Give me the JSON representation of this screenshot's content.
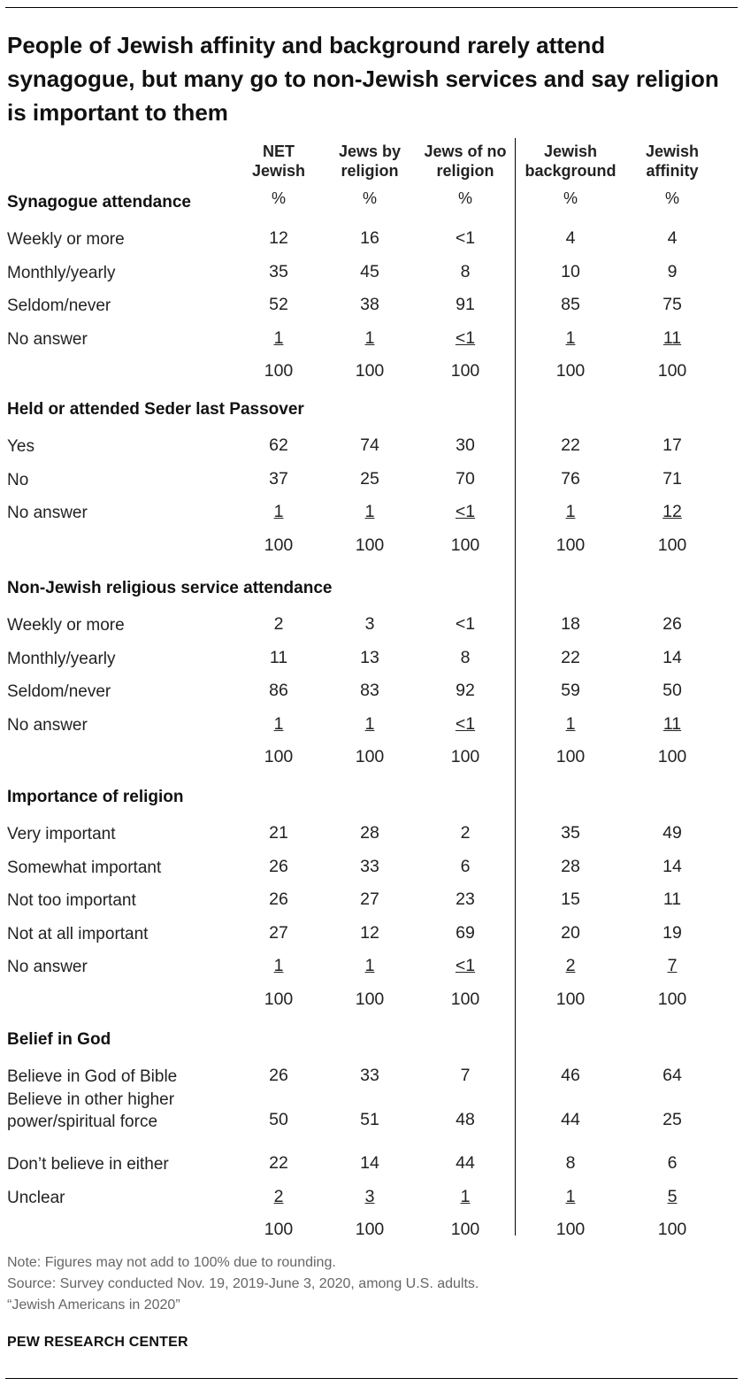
{
  "title": "People of Jewish affinity and background rarely attend synagogue, but many go to non-Jewish services and say religion is important to them",
  "chart_data": {
    "type": "table",
    "columns": [
      {
        "line1": "NET",
        "line2": "Jewish",
        "unit": "%"
      },
      {
        "line1": "Jews by",
        "line2": "religion",
        "unit": "%"
      },
      {
        "line1": "Jews of no",
        "line2": "religion",
        "unit": "%"
      },
      {
        "line1": "Jewish",
        "line2": "background",
        "unit": "%"
      },
      {
        "line1": "Jewish",
        "line2": "affinity",
        "unit": "%"
      }
    ],
    "sections": [
      {
        "header": "Synagogue attendance",
        "rows": [
          {
            "label": "Weekly or more",
            "values": [
              "12",
              "16",
              "<1",
              "4",
              "4"
            ]
          },
          {
            "label": "Monthly/yearly",
            "values": [
              "35",
              "45",
              "8",
              "10",
              "9"
            ]
          },
          {
            "label": "Seldom/never",
            "values": [
              "52",
              "38",
              "91",
              "85",
              "75"
            ]
          },
          {
            "label": "No answer",
            "values": [
              "1",
              "1",
              "<1",
              "1",
              "11"
            ],
            "underline": true
          },
          {
            "label": "",
            "values": [
              "100",
              "100",
              "100",
              "100",
              "100"
            ]
          }
        ]
      },
      {
        "header": "Held or attended Seder last Passover",
        "rows": [
          {
            "label": "Yes",
            "values": [
              "62",
              "74",
              "30",
              "22",
              "17"
            ]
          },
          {
            "label": "No",
            "values": [
              "37",
              "25",
              "70",
              "76",
              "71"
            ]
          },
          {
            "label": "No answer",
            "values": [
              "1",
              "1",
              "<1",
              "1",
              "12"
            ],
            "underline": true
          },
          {
            "label": "",
            "values": [
              "100",
              "100",
              "100",
              "100",
              "100"
            ]
          }
        ]
      },
      {
        "header": "Non-Jewish religious service attendance",
        "rows": [
          {
            "label": "Weekly or more",
            "values": [
              "2",
              "3",
              "<1",
              "18",
              "26"
            ]
          },
          {
            "label": "Monthly/yearly",
            "values": [
              "11",
              "13",
              "8",
              "22",
              "14"
            ]
          },
          {
            "label": "Seldom/never",
            "values": [
              "86",
              "83",
              "92",
              "59",
              "50"
            ]
          },
          {
            "label": "No answer",
            "values": [
              "1",
              "1",
              "<1",
              "1",
              "11"
            ],
            "underline": true
          },
          {
            "label": "",
            "values": [
              "100",
              "100",
              "100",
              "100",
              "100"
            ]
          }
        ]
      },
      {
        "header": "Importance of religion",
        "rows": [
          {
            "label": "Very important",
            "values": [
              "21",
              "28",
              "2",
              "35",
              "49"
            ]
          },
          {
            "label": "Somewhat important",
            "values": [
              "26",
              "33",
              "6",
              "28",
              "14"
            ]
          },
          {
            "label": "Not too important",
            "values": [
              "26",
              "27",
              "23",
              "15",
              "11"
            ]
          },
          {
            "label": "Not at all important",
            "values": [
              "27",
              "12",
              "69",
              "20",
              "19"
            ]
          },
          {
            "label": "No answer",
            "values": [
              "1",
              "1",
              "<1",
              "2",
              "7"
            ],
            "underline": true
          },
          {
            "label": "",
            "values": [
              "100",
              "100",
              "100",
              "100",
              "100"
            ]
          }
        ]
      },
      {
        "header": "Belief in God",
        "rows": [
          {
            "label": "Believe in God of Bible",
            "values": [
              "26",
              "33",
              "7",
              "46",
              "64"
            ]
          },
          {
            "label": "Believe in other higher power/spiritual force",
            "label_lines": [
              "Believe in other higher",
              "power/spiritual force"
            ],
            "values": [
              "50",
              "51",
              "48",
              "44",
              "25"
            ]
          },
          {
            "label": "Don’t believe in either",
            "values": [
              "22",
              "14",
              "44",
              "8",
              "6"
            ]
          },
          {
            "label": "Unclear",
            "values": [
              "2",
              "3",
              "1",
              "1",
              "5"
            ],
            "underline": true
          },
          {
            "label": "",
            "values": [
              "100",
              "100",
              "100",
              "100",
              "100"
            ]
          }
        ]
      }
    ]
  },
  "notes": {
    "note": "Note: Figures may not add to 100% due to rounding.",
    "source": "Source: Survey conducted Nov. 19, 2019-June 3, 2020, among U.S. adults.",
    "report": "“Jewish Americans in 2020”"
  },
  "brand": "PEW RESEARCH CENTER"
}
